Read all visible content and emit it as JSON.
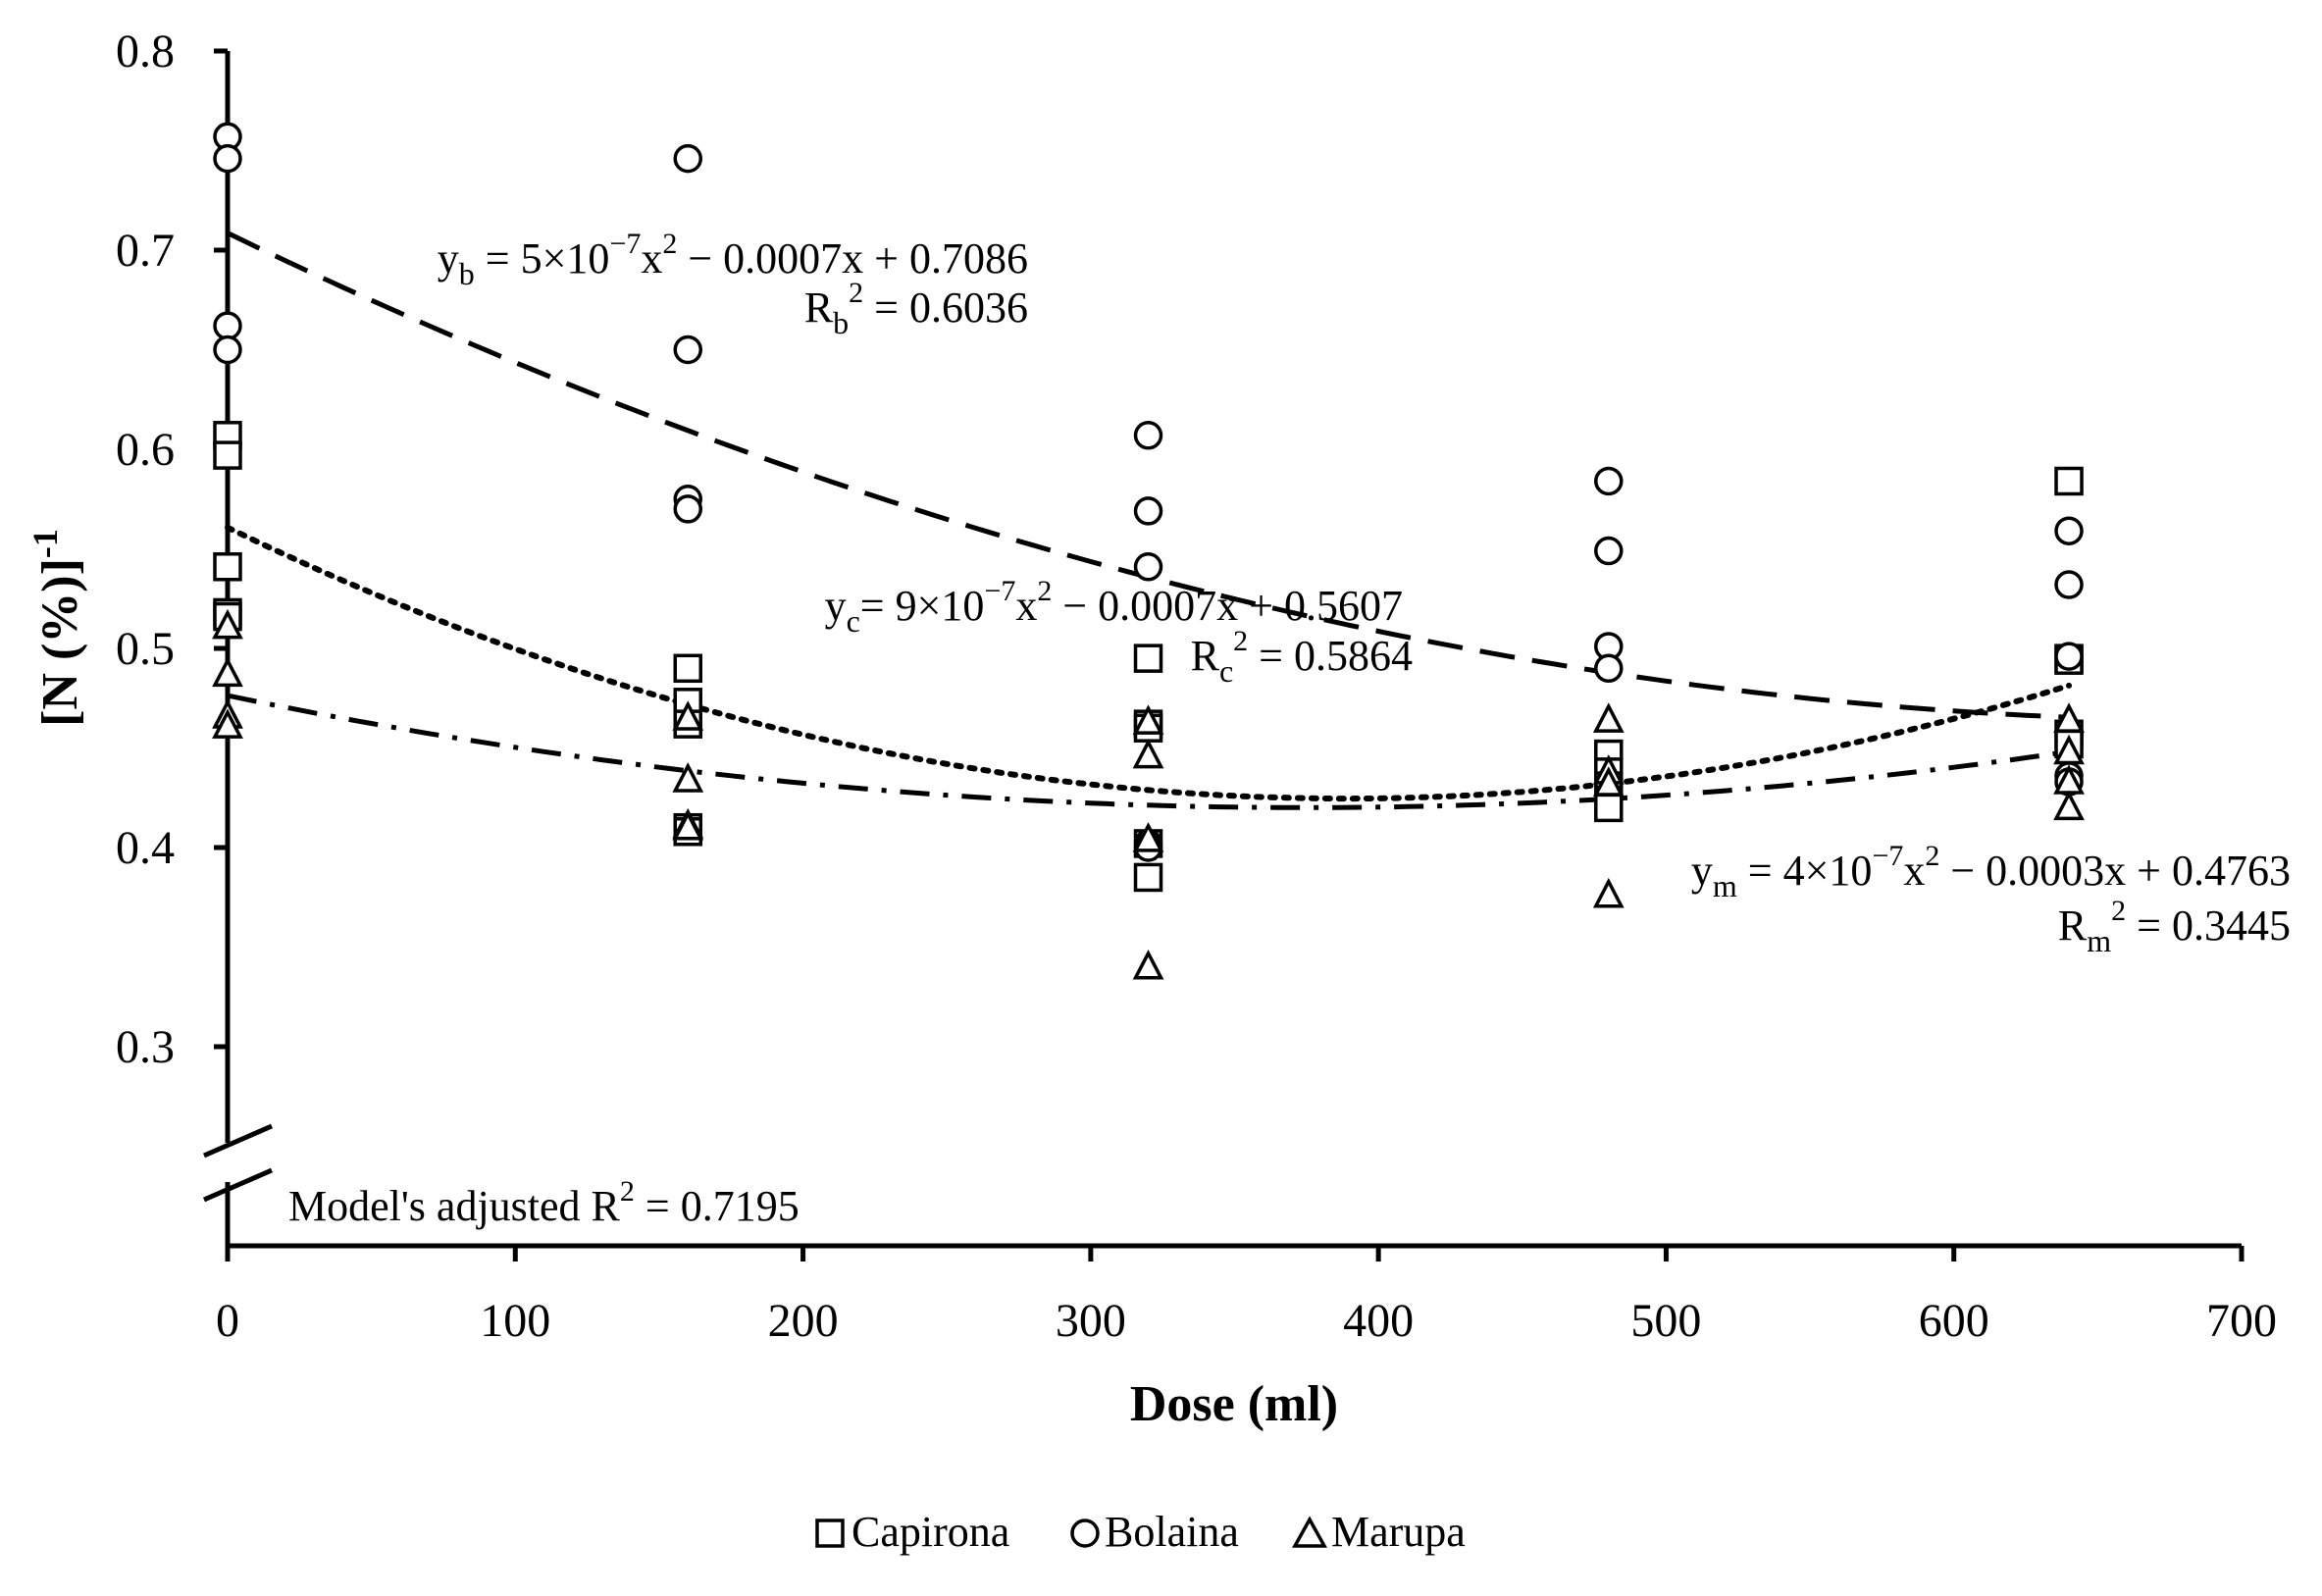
{
  "chart_data": {
    "type": "scatter",
    "xlabel": "Dose (ml)",
    "ylabel": "[N (%)]",
    "ylabel_superscript": "-1",
    "xlim": [
      0,
      700
    ],
    "ylim": [
      0.3,
      0.8
    ],
    "x_ticks": [
      0,
      100,
      200,
      300,
      400,
      500,
      600,
      700
    ],
    "x_tick_labels": [
      "0",
      "100",
      "200",
      "300",
      "400",
      "500",
      "600",
      "700"
    ],
    "y_ticks": [
      0.3,
      0.4,
      0.5,
      0.6,
      0.7,
      0.8
    ],
    "y_tick_labels": [
      "0.3",
      "0.4",
      "0.5",
      "0.6",
      "0.7",
      "0.8"
    ],
    "axis_break": true,
    "grid": false,
    "legend_position": "bottom-center",
    "series": [
      {
        "name": "Capirona",
        "marker": "square",
        "x": [
          0,
          0,
          0,
          0,
          0,
          160,
          160,
          160,
          160,
          160,
          320,
          320,
          320,
          320,
          320,
          480,
          480,
          480,
          480,
          480,
          640,
          640,
          640,
          640,
          640
        ],
        "y": [
          0.607,
          0.597,
          0.541,
          0.518,
          0.516,
          0.49,
          0.473,
          0.462,
          0.41,
          0.408,
          0.495,
          0.462,
          0.46,
          0.402,
          0.385,
          0.447,
          0.438,
          0.431,
          0.424,
          0.42,
          0.584,
          0.495,
          0.494,
          0.457,
          0.452
        ]
      },
      {
        "name": "Bolaina",
        "marker": "circle",
        "x": [
          0,
          0,
          0,
          0,
          160,
          160,
          160,
          160,
          320,
          320,
          320,
          320,
          320,
          480,
          480,
          480,
          480,
          640,
          640,
          640,
          640,
          640
        ],
        "y": [
          0.757,
          0.746,
          0.662,
          0.65,
          0.746,
          0.65,
          0.575,
          0.57,
          0.607,
          0.569,
          0.541,
          0.402,
          0.4,
          0.584,
          0.549,
          0.501,
          0.49,
          0.559,
          0.532,
          0.496,
          0.436,
          0.433
        ]
      },
      {
        "name": "Marupa",
        "marker": "triangle",
        "x": [
          0,
          0,
          0,
          0,
          160,
          160,
          160,
          160,
          320,
          320,
          320,
          320,
          480,
          480,
          480,
          480,
          640,
          640,
          640,
          640
        ],
        "y": [
          0.511,
          0.487,
          0.466,
          0.461,
          0.465,
          0.434,
          0.411,
          0.41,
          0.463,
          0.446,
          0.404,
          0.34,
          0.464,
          0.438,
          0.432,
          0.376,
          0.464,
          0.448,
          0.433,
          0.42
        ]
      }
    ],
    "trendlines": [
      {
        "series": "Bolaina",
        "style": "dashed",
        "a": 5e-07,
        "b": -0.0007,
        "c": 0.7086
      },
      {
        "series": "Capirona",
        "style": "dotted",
        "a": 9e-07,
        "b": -0.0007,
        "c": 0.5607
      },
      {
        "series": "Marupa",
        "style": "dash-dot",
        "a": 4e-07,
        "b": -0.0003,
        "c": 0.4763
      }
    ],
    "annotations": {
      "bolaina_eq": {
        "y": "y",
        "sub": "b",
        "rest": " = 5×10",
        "exp": "−7",
        "x": "x",
        "sq": "2",
        "tail": " − 0.0007x + 0.7086"
      },
      "bolaina_r2": {
        "r": "R",
        "sub": "b",
        "sq": "2",
        "tail": " = 0.6036"
      },
      "capirona_eq": {
        "y": "y",
        "sub": "c",
        "rest": "= 9×10",
        "exp": "−7",
        "x": "x",
        "sq": "2",
        "tail": " − 0.0007x + 0.5607"
      },
      "capirona_r2": {
        "r": "R",
        "sub": "c",
        "sq": "2",
        "tail": " = 0.5864"
      },
      "marupa_eq": {
        "y": "y",
        "sub": "m",
        "rest": " = 4×10",
        "exp": "−7",
        "x": "x",
        "sq": "2",
        "tail": " − 0.0003x + 0.4763"
      },
      "marupa_r2": {
        "r": "R",
        "sub": "m",
        "sq": "2",
        "tail": " = 0.3445"
      },
      "model": {
        "text": "Model's adjusted R",
        "sq": "2",
        "tail": " = 0.7195"
      }
    }
  }
}
